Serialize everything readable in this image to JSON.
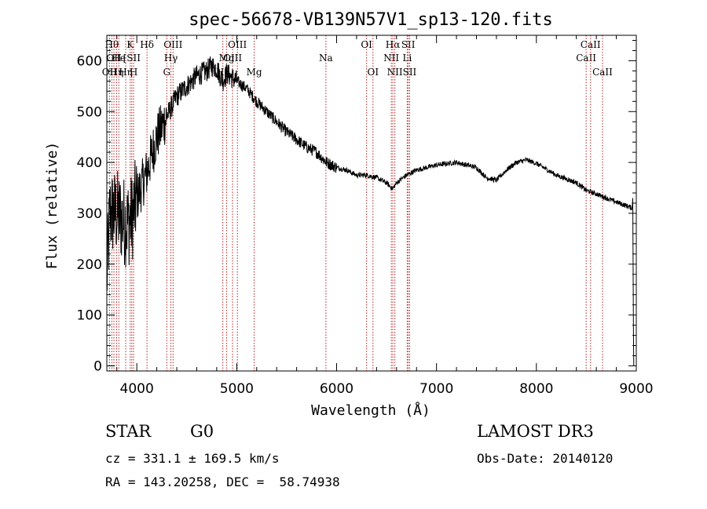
{
  "chart_data": {
    "type": "line",
    "title": "spec-56678-VB139N57V1_sp13-120.fits",
    "xlabel": "Wavelength (Å)",
    "ylabel": "Flux (relative)",
    "xlim": [
      3700,
      9000
    ],
    "ylim": [
      -10,
      650
    ],
    "xticks": [
      4000,
      5000,
      6000,
      7000,
      8000,
      9000
    ],
    "xtick_labels": [
      "4000",
      "5000",
      "6000",
      "7000",
      "8000",
      "9000"
    ],
    "yticks": [
      0,
      100,
      200,
      300,
      400,
      500,
      600
    ],
    "ytick_labels": [
      "0",
      "100",
      "200",
      "300",
      "400",
      "500",
      "600"
    ],
    "spectrum_anchors": [
      [
        3700,
        170
      ],
      [
        3730,
        300
      ],
      [
        3800,
        300
      ],
      [
        3900,
        280
      ],
      [
        3950,
        290
      ],
      [
        4000,
        330
      ],
      [
        4100,
        380
      ],
      [
        4200,
        450
      ],
      [
        4300,
        490
      ],
      [
        4400,
        530
      ],
      [
        4500,
        550
      ],
      [
        4600,
        570
      ],
      [
        4700,
        580
      ],
      [
        4750,
        590
      ],
      [
        4800,
        585
      ],
      [
        4860,
        560
      ],
      [
        4900,
        575
      ],
      [
        5000,
        560
      ],
      [
        5100,
        545
      ],
      [
        5200,
        520
      ],
      [
        5300,
        500
      ],
      [
        5400,
        480
      ],
      [
        5500,
        460
      ],
      [
        5600,
        445
      ],
      [
        5700,
        430
      ],
      [
        5800,
        420
      ],
      [
        5900,
        400
      ],
      [
        6000,
        390
      ],
      [
        6100,
        385
      ],
      [
        6200,
        375
      ],
      [
        6300,
        375
      ],
      [
        6400,
        370
      ],
      [
        6500,
        360
      ],
      [
        6560,
        348
      ],
      [
        6600,
        360
      ],
      [
        6700,
        375
      ],
      [
        6800,
        385
      ],
      [
        6900,
        390
      ],
      [
        7000,
        395
      ],
      [
        7200,
        400
      ],
      [
        7400,
        390
      ],
      [
        7500,
        370
      ],
      [
        7600,
        365
      ],
      [
        7700,
        385
      ],
      [
        7800,
        400
      ],
      [
        7900,
        405
      ],
      [
        8000,
        398
      ],
      [
        8200,
        375
      ],
      [
        8400,
        360
      ],
      [
        8500,
        345
      ],
      [
        8600,
        338
      ],
      [
        8700,
        330
      ],
      [
        8800,
        322
      ],
      [
        8900,
        315
      ],
      [
        8960,
        310
      ]
    ],
    "emission_lines": [
      {
        "wl": 3727,
        "label": "OII",
        "row": 3
      },
      {
        "wl": 3750,
        "label": "Hθ",
        "row": 1
      },
      {
        "wl": 3771,
        "label": "OII",
        "row": 2
      },
      {
        "wl": 3798,
        "label": "Hη",
        "row": 3
      },
      {
        "wl": 3820,
        "label": "He",
        "row": 2
      },
      {
        "wl": 3889,
        "label": "Hη",
        "row": 3
      },
      {
        "wl": 3934,
        "label": "K",
        "row": 1
      },
      {
        "wl": 3950,
        "label": "[SII",
        "row": 2
      },
      {
        "wl": 3968,
        "label": "H",
        "row": 3
      },
      {
        "wl": 4102,
        "label": "Hδ",
        "row": 1
      },
      {
        "wl": 4300,
        "label": "G",
        "row": 3
      },
      {
        "wl": 4341,
        "label": "Hγ",
        "row": 2
      },
      {
        "wl": 4363,
        "label": "OIII",
        "row": 1
      },
      {
        "wl": 4861,
        "label": "Hβ",
        "row": 3
      },
      {
        "wl": 4900,
        "label": "Mg",
        "row": 2
      },
      {
        "wl": 4959,
        "label": "OIII",
        "row": 2
      },
      {
        "wl": 5007,
        "label": "OIII",
        "row": 1
      },
      {
        "wl": 5175,
        "label": "Mg",
        "row": 3
      },
      {
        "wl": 5893,
        "label": "Na",
        "row": 2
      },
      {
        "wl": 6300,
        "label": "OI",
        "row": 1
      },
      {
        "wl": 6364,
        "label": "OI",
        "row": 3
      },
      {
        "wl": 6548,
        "label": "NII",
        "row": 2
      },
      {
        "wl": 6563,
        "label": "Hα",
        "row": 1
      },
      {
        "wl": 6583,
        "label": "NII",
        "row": 3
      },
      {
        "wl": 6707,
        "label": "Li",
        "row": 2
      },
      {
        "wl": 6717,
        "label": "SII",
        "row": 1
      },
      {
        "wl": 6731,
        "label": "SII",
        "row": 3
      },
      {
        "wl": 8498,
        "label": "CaII",
        "row": 2
      },
      {
        "wl": 8542,
        "label": "CaII",
        "row": 1
      },
      {
        "wl": 8662,
        "label": "CaII",
        "row": 3
      }
    ]
  },
  "info": {
    "object_class": "STAR",
    "subclass": "G0",
    "survey": "LAMOST DR3",
    "cz": "cz = 331.1 ± 169.5 km/s",
    "obs_date": "Obs-Date: 20140120",
    "coords": "RA = 143.20258, DEC =  58.74938"
  }
}
